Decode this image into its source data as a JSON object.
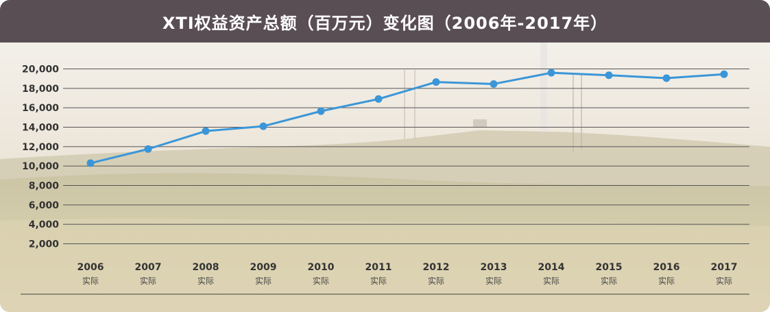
{
  "chart_data": {
    "type": "line",
    "title": "XTI权益资产总额（百万元）变化图（2006年-2017年）",
    "categories": [
      "2006",
      "2007",
      "2008",
      "2009",
      "2010",
      "2011",
      "2012",
      "2013",
      "2014",
      "2015",
      "2016",
      "2017"
    ],
    "sublabels": [
      "实际",
      "实际",
      "实际",
      "实际",
      "实际",
      "实际",
      "实际",
      "实际",
      "实际",
      "实际",
      "实际",
      "实际"
    ],
    "series": [
      {
        "values": [
          10300,
          11750,
          13600,
          14100,
          15650,
          16900,
          18650,
          18450,
          19600,
          19350,
          19050,
          19450
        ]
      }
    ],
    "yticks": [
      "2,000",
      "4,000",
      "6,000",
      "8,000",
      "10,000",
      "12,000",
      "14,000",
      "16,000",
      "18,000",
      "20,000"
    ],
    "ytick_values": [
      2000,
      4000,
      6000,
      8000,
      10000,
      12000,
      14000,
      16000,
      18000,
      20000
    ],
    "ylim": [
      0,
      20000
    ],
    "grid": true,
    "colors": {
      "line": "#3a96d8",
      "header": "#5a4e55",
      "grid": "#555555",
      "label": "#333333"
    }
  }
}
